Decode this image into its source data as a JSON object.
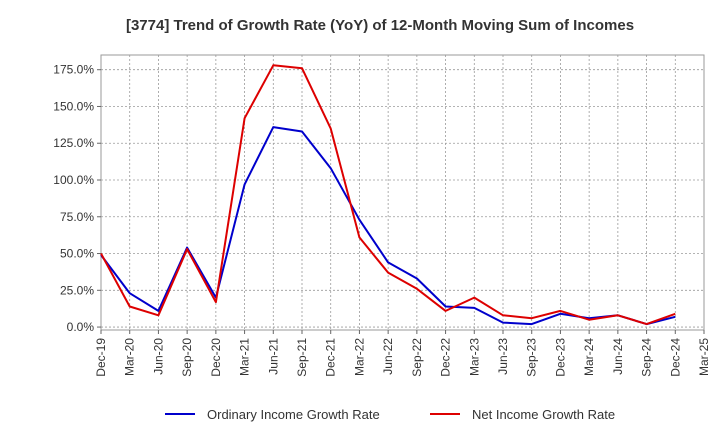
{
  "chart_data": {
    "type": "line",
    "title": "[3774]  Trend of Growth Rate (YoY) of 12-Month Moving Sum of Incomes",
    "xlabel": "",
    "ylabel": "",
    "ylim": [
      -2,
      185
    ],
    "grid": true,
    "legend_position": "bottom",
    "y_ticks": [
      0,
      25,
      50,
      75,
      100,
      125,
      150,
      175
    ],
    "y_tick_labels": [
      "0.0%",
      "25.0%",
      "50.0%",
      "75.0%",
      "100.0%",
      "125.0%",
      "150.0%",
      "175.0%"
    ],
    "x_ticks": [
      "Dec-19",
      "Mar-20",
      "Jun-20",
      "Sep-20",
      "Dec-20",
      "Mar-21",
      "Jun-21",
      "Sep-21",
      "Dec-21",
      "Mar-22",
      "Jun-22",
      "Sep-22",
      "Dec-22",
      "Mar-23",
      "Jun-23",
      "Sep-23",
      "Dec-23",
      "Mar-24",
      "Jun-24",
      "Sep-24",
      "Dec-24",
      "Mar-25"
    ],
    "x": [
      "Dec-19",
      "Jan-20",
      "Feb-20",
      "Mar-20",
      "Apr-20",
      "May-20",
      "Jun-20",
      "Jul-20",
      "Aug-20",
      "Sep-20",
      "Oct-20",
      "Nov-20",
      "Dec-20",
      "Jan-21",
      "Feb-21",
      "Mar-21",
      "Apr-21",
      "May-21",
      "Jun-21",
      "Jul-21",
      "Aug-21",
      "Sep-21",
      "Oct-21",
      "Nov-21",
      "Dec-21",
      "Jan-22",
      "Feb-22",
      "Mar-22",
      "Apr-22",
      "May-22",
      "Jun-22",
      "Jul-22",
      "Aug-22",
      "Sep-22",
      "Oct-22",
      "Nov-22",
      "Dec-22",
      "Jan-23",
      "Feb-23",
      "Mar-23",
      "Apr-23",
      "May-23",
      "Jun-23",
      "Jul-23",
      "Aug-23",
      "Sep-23",
      "Oct-23",
      "Nov-23",
      "Dec-23",
      "Jan-24",
      "Feb-24",
      "Mar-24",
      "Apr-24",
      "May-24",
      "Jun-24",
      "Jul-24",
      "Aug-24",
      "Sep-24",
      "Oct-24",
      "Nov-24",
      "Dec-24"
    ],
    "series": [
      {
        "name": "Ordinary Income Growth Rate",
        "color": "#0000cc",
        "values": [
          49,
          null,
          null,
          23,
          null,
          null,
          11,
          null,
          null,
          54,
          null,
          null,
          20,
          null,
          null,
          97,
          null,
          null,
          136,
          null,
          null,
          133,
          null,
          null,
          108,
          null,
          null,
          73,
          null,
          null,
          44,
          null,
          null,
          33,
          null,
          null,
          14,
          null,
          null,
          13,
          null,
          null,
          3,
          null,
          null,
          2,
          null,
          null,
          9,
          null,
          null,
          6,
          null,
          null,
          8,
          null,
          null,
          2,
          null,
          null,
          7
        ]
      },
      {
        "name": "Net Income Growth Rate",
        "color": "#dd0000",
        "values": [
          50,
          null,
          null,
          14,
          null,
          null,
          8,
          null,
          null,
          53,
          null,
          null,
          17,
          null,
          null,
          142,
          null,
          null,
          178,
          null,
          null,
          176,
          null,
          null,
          135,
          null,
          null,
          61,
          null,
          null,
          37,
          null,
          null,
          26,
          null,
          null,
          11,
          null,
          null,
          20,
          null,
          null,
          8,
          null,
          null,
          6,
          null,
          null,
          11,
          null,
          null,
          5,
          null,
          null,
          8,
          null,
          null,
          2,
          null,
          null,
          9
        ]
      }
    ]
  }
}
